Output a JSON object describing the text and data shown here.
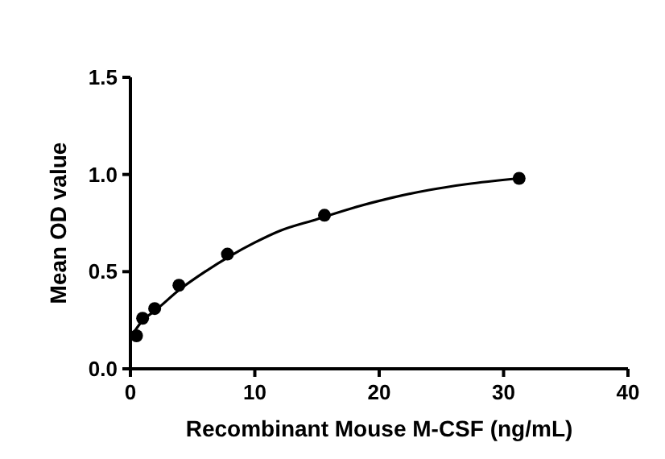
{
  "chart_data": {
    "type": "scatter",
    "xlabel": "Recombinant Mouse M-CSF (ng/mL)",
    "ylabel": "Mean OD value",
    "xlim": [
      0,
      40
    ],
    "xticks": [
      0,
      10,
      20,
      30,
      40
    ],
    "ylim": [
      0,
      1.5
    ],
    "yticks": [
      {
        "value": 0,
        "label": "0.0"
      },
      {
        "value": 0.5,
        "label": "0.5"
      },
      {
        "value": 1,
        "label": "1.0"
      },
      {
        "value": 1.5,
        "label": "1.5"
      }
    ],
    "grid": false,
    "marker": "circle",
    "series": [
      {
        "color": "#000000",
        "x": [
          0.49,
          0.98,
          1.95,
          3.9,
          7.8,
          15.6,
          31.25
        ],
        "values": [
          0.17,
          0.26,
          0.31,
          0.43,
          0.59,
          0.79,
          0.98
        ]
      },
      {
        "type": "line",
        "color": "#000000",
        "marker": "none",
        "line_style": "solid",
        "x": [
          0.3,
          1,
          2,
          4,
          6,
          8,
          10,
          12,
          15,
          18,
          21,
          24,
          27,
          31.25
        ],
        "values": [
          0.19,
          0.25,
          0.3,
          0.41,
          0.5,
          0.58,
          0.65,
          0.71,
          0.77,
          0.83,
          0.88,
          0.92,
          0.95,
          0.98
        ]
      }
    ]
  }
}
